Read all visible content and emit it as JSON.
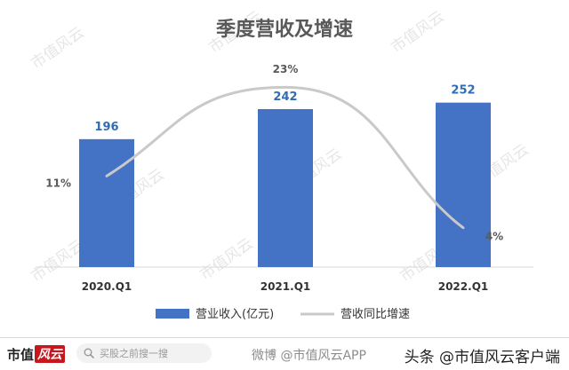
{
  "chart_data": {
    "type": "bar",
    "title": "季度营收及增速",
    "categories": [
      "2020.Q1",
      "2021.Q1",
      "2022.Q1"
    ],
    "series": [
      {
        "name": "营业收入(亿元)",
        "type": "bar",
        "values": [
          196,
          242,
          252
        ],
        "labels": [
          "196",
          "242",
          "252"
        ],
        "color": "#4472c4"
      },
      {
        "name": "营收同比增速",
        "type": "line",
        "values": [
          11,
          23,
          4
        ],
        "labels": [
          "11%",
          "23%",
          "4%"
        ],
        "color": "#c9c9c9"
      }
    ],
    "ylim": [
      0,
      300
    ],
    "y2lim": [
      0,
      30
    ],
    "grid": false,
    "legend_position": "bottom"
  },
  "watermark": {
    "text": "市值风云"
  },
  "footer": {
    "brand_main": "市值",
    "brand_italic": "风云",
    "search_placeholder": "买股之前搜一搜",
    "weibo_mark": "微博 @市值风云APP",
    "account": "头条 @市值风云客户端"
  },
  "colors": {
    "bar": "#4472c4",
    "line": "#c9c9c9",
    "bar_label": "#2e6db4",
    "brand_red": "#c8161d"
  }
}
